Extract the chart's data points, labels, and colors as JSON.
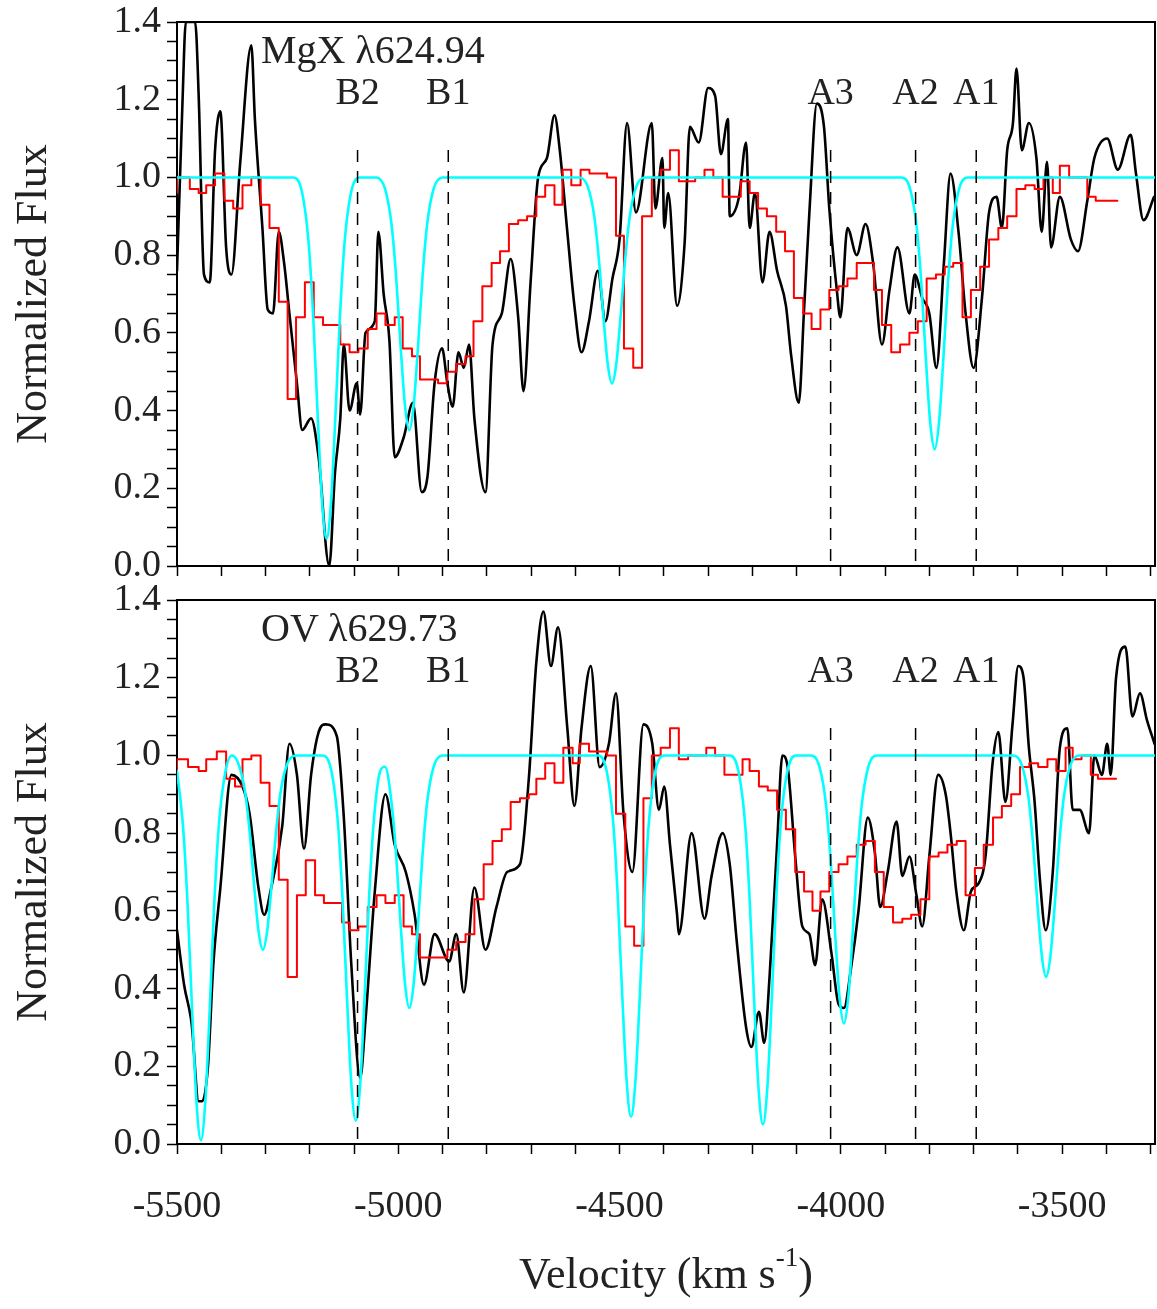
{
  "chart_data": [
    {
      "type": "line",
      "annotations": [
        "MgX λ624.94"
      ],
      "ylabel": "Normalized Flux",
      "tick_labels": "y",
      "xlim": [
        -5500,
        -3290
      ],
      "xticks": [
        -5500,
        {
          "value": -5400,
          "label": null
        },
        {
          "value": -5300,
          "label": null
        },
        {
          "value": -5200,
          "label": null
        },
        {
          "value": -5100,
          "label": null
        },
        -5000,
        {
          "value": -4900,
          "label": null
        },
        {
          "value": -4800,
          "label": null
        },
        {
          "value": -4700,
          "label": null
        },
        {
          "value": -4600,
          "label": null
        },
        -4500,
        {
          "value": -4400,
          "label": null
        },
        {
          "value": -4300,
          "label": null
        },
        {
          "value": -4200,
          "label": null
        },
        {
          "value": -4100,
          "label": null
        },
        -4000,
        {
          "value": -3900,
          "label": null
        },
        {
          "value": -3800,
          "label": null
        },
        {
          "value": -3700,
          "label": null
        },
        {
          "value": -3600,
          "label": null
        },
        -3500,
        {
          "value": -3400,
          "label": null
        },
        {
          "value": -3300,
          "label": null
        }
      ],
      "ylim": [
        0,
        1.4
      ],
      "yticks": [
        {
          "value": 0,
          "label": "0.0"
        },
        {
          "value": 0.05,
          "label": null
        },
        {
          "value": 0.1,
          "label": null
        },
        {
          "value": 0.15,
          "label": null
        },
        {
          "value": 0.2,
          "label": "0.2"
        },
        {
          "value": 0.25,
          "label": null
        },
        {
          "value": 0.3,
          "label": null
        },
        {
          "value": 0.35,
          "label": null
        },
        {
          "value": 0.4,
          "label": "0.4"
        },
        {
          "value": 0.45,
          "label": null
        },
        {
          "value": 0.5,
          "label": null
        },
        {
          "value": 0.55,
          "label": null
        },
        {
          "value": 0.6,
          "label": "0.6"
        },
        {
          "value": 0.65,
          "label": null
        },
        {
          "value": 0.7,
          "label": null
        },
        {
          "value": 0.75,
          "label": null
        },
        {
          "value": 0.8,
          "label": "0.8"
        },
        {
          "value": 0.85,
          "label": null
        },
        {
          "value": 0.9,
          "label": null
        },
        {
          "value": 0.95,
          "label": null
        },
        {
          "value": 1,
          "label": "1.0"
        },
        {
          "value": 1.05,
          "label": null
        },
        {
          "value": 1.1,
          "label": null
        },
        {
          "value": 1.15,
          "label": null
        },
        {
          "value": 1.2,
          "label": "1.2"
        },
        {
          "value": 1.25,
          "label": null
        },
        {
          "value": 1.3,
          "label": null
        },
        {
          "value": 1.35,
          "label": null
        },
        {
          "value": 1.4,
          "label": "1.4"
        }
      ],
      "ref_lines": [
        {
          "axis": "x",
          "value": -5092,
          "label": "B2",
          "color": "#000000",
          "line_style": "dashed"
        },
        {
          "axis": "x",
          "value": -4887,
          "label": "B1",
          "color": "#000000",
          "line_style": "dashed"
        },
        {
          "axis": "x",
          "value": -4023,
          "label": "A3",
          "color": "#000000",
          "line_style": "dashed"
        },
        {
          "axis": "x",
          "value": -3831,
          "label": "A2",
          "color": "#000000",
          "line_style": "dashed"
        },
        {
          "axis": "x",
          "value": -3694,
          "label": "A1",
          "color": "#000000",
          "line_style": "dashed"
        }
      ],
      "series": [
        {
          "type": "line",
          "color": "#000000",
          "x": [
            -5500,
            -5488,
            -5480,
            -5459,
            -5451,
            -5439,
            -5426,
            -5414,
            -5402,
            -5389,
            -5377,
            -5357,
            -5332,
            -5324,
            -5307,
            -5295,
            -5283,
            -5270,
            -5258,
            -5246,
            -5229,
            -5217,
            -5197,
            -5180,
            -5156,
            -5143,
            -5131,
            -5123,
            -5110,
            -5094,
            -5086,
            -5074,
            -5053,
            -5045,
            -5033,
            -5020,
            -5008,
            -4988,
            -4967,
            -4947,
            -4934,
            -4918,
            -4901,
            -4889,
            -4877,
            -4864,
            -4852,
            -4840,
            -4828,
            -4803,
            -4787,
            -4766,
            -4746,
            -4729,
            -4717,
            -4701,
            -4684,
            -4664,
            -4647,
            -4635,
            -4618,
            -4602,
            -4586,
            -4569,
            -4549,
            -4532,
            -4516,
            -4500,
            -4483,
            -4463,
            -4427,
            -4419,
            -4403,
            -4399,
            -4390,
            -4370,
            -4353,
            -4341,
            -4321,
            -4300,
            -4284,
            -4271,
            -4255,
            -4251,
            -4230,
            -4214,
            -4206,
            -4194,
            -4177,
            -4161,
            -4144,
            -4124,
            -4112,
            -4095,
            -4083,
            -4071,
            -4054,
            -4038,
            -4026,
            -4009,
            -4001,
            -3985,
            -3964,
            -3944,
            -3927,
            -3907,
            -3890,
            -3872,
            -3845,
            -3833,
            -3816,
            -3800,
            -3784,
            -3767,
            -3752,
            -3734,
            -3718,
            -3700,
            -3681,
            -3665,
            -3648,
            -3636,
            -3624,
            -3611,
            -3603,
            -3591,
            -3575,
            -3558,
            -3546,
            -3534,
            -3525,
            -3505,
            -3480,
            -3464,
            -3443,
            -3427,
            -3398,
            -3374,
            -3345,
            -3333,
            -3316,
            -3292
          ],
          "values": [
            0.76,
            1.18,
            1.4,
            1.4,
            1.21,
            0.75,
            0.73,
            1.07,
            1.17,
            0.82,
            0.75,
            1.04,
            1.34,
            1.15,
            0.87,
            0.66,
            0.65,
            0.86,
            0.78,
            0.65,
            0.47,
            0.35,
            0.38,
            0.28,
            0,
            0.24,
            0.38,
            0.57,
            0.4,
            0.47,
            0.39,
            0.6,
            0.63,
            0.86,
            0.7,
            0.58,
            0.28,
            0.33,
            0.42,
            0.19,
            0.23,
            0.47,
            0.56,
            0.47,
            0.41,
            0.55,
            0.51,
            0.57,
            0.38,
            0.19,
            0.57,
            0.65,
            0.79,
            0.64,
            0.45,
            0.73,
            1,
            1.05,
            1.16,
            1.07,
            0.86,
            0.67,
            0.55,
            0.63,
            0.76,
            0.63,
            0.74,
            0.84,
            1.14,
            0.91,
            1.14,
            0.92,
            1.05,
            0.87,
            0.96,
            0.67,
            0.83,
            1.13,
            1.09,
            1.23,
            1.21,
            1.06,
            1.15,
            0.9,
            0.95,
            1.09,
            0.87,
            0.96,
            0.73,
            0.86,
            0.76,
            0.67,
            0.54,
            0.42,
            0.66,
            0.91,
            1.19,
            1.13,
            0.92,
            0.71,
            0.64,
            0.87,
            0.8,
            0.88,
            0.78,
            0.57,
            0.71,
            0.82,
            0.65,
            0.75,
            0.69,
            0.65,
            0.51,
            0.78,
            1.01,
            0.86,
            0.65,
            0.51,
            0.69,
            0.91,
            0.95,
            0.87,
            1.07,
            1.14,
            1.28,
            1.07,
            1.14,
            1.05,
            0.86,
            1.04,
            0.82,
            0.95,
            0.84,
            0.81,
            0.94,
            1.05,
            1.1,
            1.02,
            1.11,
            1.01,
            0.89,
            0.95
          ]
        },
        {
          "type": "step",
          "color": "#ff0000",
          "x": [
            -5500,
            -5471,
            -5451,
            -5434,
            -5414,
            -5393,
            -5373,
            -5352,
            -5332,
            -5311,
            -5291,
            -5270,
            -5250,
            -5231,
            -5211,
            -5191,
            -5170,
            -5150,
            -5131,
            -5110,
            -5090,
            -5069,
            -5049,
            -5029,
            -5008,
            -4990,
            -4969,
            -4951,
            -4930,
            -4910,
            -4889,
            -4869,
            -4848,
            -4830,
            -4810,
            -4789,
            -4770,
            -4750,
            -4729,
            -4709,
            -4688,
            -4668,
            -4647,
            -4629,
            -4609,
            -4588,
            -4568,
            -4549,
            -4528,
            -4508,
            -4490,
            -4469,
            -4449,
            -4427,
            -4407,
            -4386,
            -4366,
            -4349,
            -4329,
            -4308,
            -4288,
            -4267,
            -4247,
            -4226,
            -4206,
            -4187,
            -4167,
            -4146,
            -4126,
            -4106,
            -4085,
            -4066,
            -4046,
            -4026,
            -4005,
            -3985,
            -3964,
            -3946,
            -3925,
            -3907,
            -3886,
            -3866,
            -3845,
            -3826,
            -3806,
            -3785,
            -3765,
            -3746,
            -3725,
            -3706,
            -3685,
            -3665,
            -3644,
            -3624,
            -3603,
            -3583,
            -3562,
            -3542,
            -3521,
            -3505,
            -3484,
            -3464,
            -3443,
            -3424,
            -3405,
            -3375
          ],
          "values": [
            0.96,
            1,
            0.97,
            0.96,
            0.98,
            1.01,
            0.94,
            0.92,
            0.98,
            1,
            0.93,
            0.87,
            0.68,
            0.43,
            0.64,
            0.73,
            0.64,
            0.62,
            0.62,
            0.57,
            0.55,
            0.56,
            0.61,
            0.65,
            0.62,
            0.64,
            0.56,
            0.54,
            0.48,
            0.48,
            0.47,
            0.5,
            0.52,
            0.54,
            0.63,
            0.72,
            0.78,
            0.81,
            0.88,
            0.89,
            0.9,
            0.95,
            0.98,
            0.93,
            1.02,
            0.98,
            1.02,
            1.01,
            1.01,
            1,
            0.85,
            0.56,
            0.51,
            0.9,
            1,
            1.02,
            1.07,
            0.99,
            0.99,
            1,
            1.02,
            1,
            0.95,
            0.95,
            0.99,
            0.96,
            0.92,
            0.9,
            0.86,
            0.81,
            0.69,
            0.65,
            0.61,
            0.66,
            0.71,
            0.72,
            0.74,
            0.78,
            0.78,
            0.71,
            0.62,
            0.55,
            0.57,
            0.6,
            0.63,
            0.74,
            0.75,
            0.77,
            0.78,
            0.64,
            0.71,
            0.77,
            0.84,
            0.87,
            0.9,
            0.97,
            0.98,
            0.97,
            1,
            0.96,
            1.03,
            1,
            1,
            0.95,
            0.94,
            0.94
          ]
        },
        {
          "type": "line",
          "color": "#00ffff",
          "x": [
            -5500,
            -5237,
            -5217,
            -5202,
            -5192,
            -5182,
            -5172,
            -5162,
            -5152,
            -5142,
            -5132,
            -5122,
            -5107,
            -5087,
            -5050,
            -5030,
            -5015,
            -5005,
            -4995,
            -4985,
            -4975,
            -4965,
            -4955,
            -4945,
            -4935,
            -4920,
            -4900,
            -4592,
            -4572,
            -4557,
            -4547,
            -4537,
            -4527,
            -4517,
            -4507,
            -4497,
            -4487,
            -4477,
            -4462,
            -4442,
            -3863,
            -3843,
            -3828,
            -3818,
            -3808,
            -3798,
            -3788,
            -3778,
            -3768,
            -3758,
            -3748,
            -3733,
            -3713,
            -3290
          ],
          "values": [
            1,
            1,
            0.959,
            0.823,
            0.637,
            0.386,
            0.163,
            0.07,
            0.163,
            0.386,
            0.637,
            0.823,
            0.959,
            1,
            1,
            0.971,
            0.877,
            0.747,
            0.571,
            0.415,
            0.35,
            0.415,
            0.571,
            0.747,
            0.877,
            0.971,
            1,
            1,
            0.977,
            0.899,
            0.793,
            0.65,
            0.523,
            0.47,
            0.523,
            0.65,
            0.793,
            0.899,
            0.977,
            1,
            1,
            0.969,
            0.867,
            0.727,
            0.538,
            0.37,
            0.3,
            0.37,
            0.538,
            0.727,
            0.867,
            0.969,
            1,
            1
          ]
        }
      ]
    },
    {
      "type": "line",
      "annotations": [
        "OV λ629.73"
      ],
      "ylabel": "Normalized Flux",
      "xlabel": "Velocity (km s$^{-1}$)",
      "xlim": [
        -5500,
        -3290
      ],
      "xticks": [
        -5500,
        {
          "value": -5400,
          "label": null
        },
        {
          "value": -5300,
          "label": null
        },
        {
          "value": -5200,
          "label": null
        },
        {
          "value": -5100,
          "label": null
        },
        -5000,
        {
          "value": -4900,
          "label": null
        },
        {
          "value": -4800,
          "label": null
        },
        {
          "value": -4700,
          "label": null
        },
        {
          "value": -4600,
          "label": null
        },
        -4500,
        {
          "value": -4400,
          "label": null
        },
        {
          "value": -4300,
          "label": null
        },
        {
          "value": -4200,
          "label": null
        },
        {
          "value": -4100,
          "label": null
        },
        -4000,
        {
          "value": -3900,
          "label": null
        },
        {
          "value": -3800,
          "label": null
        },
        {
          "value": -3700,
          "label": null
        },
        {
          "value": -3600,
          "label": null
        },
        -3500,
        {
          "value": -3400,
          "label": null
        },
        {
          "value": -3300,
          "label": null
        }
      ],
      "ylim": [
        0,
        1.4
      ],
      "yticks": [
        {
          "value": 0,
          "label": "0.0"
        },
        {
          "value": 0.05,
          "label": null
        },
        {
          "value": 0.1,
          "label": null
        },
        {
          "value": 0.15,
          "label": null
        },
        {
          "value": 0.2,
          "label": "0.2"
        },
        {
          "value": 0.25,
          "label": null
        },
        {
          "value": 0.3,
          "label": null
        },
        {
          "value": 0.35,
          "label": null
        },
        {
          "value": 0.4,
          "label": "0.4"
        },
        {
          "value": 0.45,
          "label": null
        },
        {
          "value": 0.5,
          "label": null
        },
        {
          "value": 0.55,
          "label": null
        },
        {
          "value": 0.6,
          "label": "0.6"
        },
        {
          "value": 0.65,
          "label": null
        },
        {
          "value": 0.7,
          "label": null
        },
        {
          "value": 0.75,
          "label": null
        },
        {
          "value": 0.8,
          "label": "0.8"
        },
        {
          "value": 0.85,
          "label": null
        },
        {
          "value": 0.9,
          "label": null
        },
        {
          "value": 0.95,
          "label": null
        },
        {
          "value": 1,
          "label": "1.0"
        },
        {
          "value": 1.05,
          "label": null
        },
        {
          "value": 1.1,
          "label": null
        },
        {
          "value": 1.15,
          "label": null
        },
        {
          "value": 1.2,
          "label": "1.2"
        },
        {
          "value": 1.25,
          "label": null
        },
        {
          "value": 1.3,
          "label": null
        },
        {
          "value": 1.35,
          "label": null
        },
        {
          "value": 1.4,
          "label": "1.4"
        }
      ],
      "ref_lines": [
        {
          "axis": "x",
          "value": -5092,
          "label": "B2",
          "color": "#000000",
          "line_style": "dashed"
        },
        {
          "axis": "x",
          "value": -4887,
          "label": "B1",
          "color": "#000000",
          "line_style": "dashed"
        },
        {
          "axis": "x",
          "value": -4023,
          "label": "A3",
          "color": "#000000",
          "line_style": "dashed"
        },
        {
          "axis": "x",
          "value": -3831,
          "label": "A2",
          "color": "#000000",
          "line_style": "dashed"
        },
        {
          "axis": "x",
          "value": -3694,
          "label": "A1",
          "color": "#000000",
          "line_style": "dashed"
        }
      ],
      "series": [
        {
          "type": "line",
          "color": "#000000",
          "x": [
            -5500,
            -5484,
            -5467,
            -5451,
            -5443,
            -5430,
            -5418,
            -5402,
            -5377,
            -5352,
            -5336,
            -5316,
            -5303,
            -5287,
            -5262,
            -5246,
            -5229,
            -5213,
            -5197,
            -5180,
            -5164,
            -5139,
            -5123,
            -5106,
            -5086,
            -5074,
            -5053,
            -5029,
            -5008,
            -4983,
            -4963,
            -4942,
            -4918,
            -4885,
            -4869,
            -4852,
            -4828,
            -4803,
            -4778,
            -4754,
            -4725,
            -4705,
            -4688,
            -4672,
            -4655,
            -4639,
            -4618,
            -4602,
            -4586,
            -4565,
            -4545,
            -4524,
            -4508,
            -4491,
            -4471,
            -4446,
            -4426,
            -4411,
            -4399,
            -4386,
            -4370,
            -4366,
            -4337,
            -4308,
            -4292,
            -4267,
            -4251,
            -4235,
            -4214,
            -4202,
            -4185,
            -4173,
            -4161,
            -4144,
            -4132,
            -4120,
            -4103,
            -4087,
            -4071,
            -4058,
            -4042,
            -4021,
            -4005,
            -3993,
            -3976,
            -3960,
            -3939,
            -3923,
            -3911,
            -3894,
            -3874,
            -3861,
            -3845,
            -3829,
            -3816,
            -3800,
            -3780,
            -3763,
            -3751,
            -3739,
            -3722,
            -3706,
            -3689,
            -3673,
            -3657,
            -3644,
            -3628,
            -3612,
            -3599,
            -3587,
            -3575,
            -3562,
            -3550,
            -3537,
            -3521,
            -3505,
            -3488,
            -3476,
            -3460,
            -3439,
            -3427,
            -3410,
            -3398,
            -3390,
            -3378,
            -3357,
            -3341,
            -3324,
            -3308,
            -3291
          ],
          "values": [
            0.55,
            0.41,
            0.31,
            0.11,
            0.11,
            0.2,
            0.46,
            0.66,
            0.95,
            0.92,
            0.85,
            0.66,
            0.59,
            0.66,
            0.82,
            1.03,
            0.95,
            0.76,
            0.95,
            1.06,
            1.08,
            1.05,
            0.84,
            0.46,
            0.17,
            0.32,
            0.65,
            0.9,
            0.77,
            0.7,
            0.59,
            0.41,
            0.54,
            0.47,
            0.54,
            0.39,
            0.66,
            0.5,
            0.61,
            0.7,
            0.72,
            0.94,
            1.24,
            1.37,
            1.23,
            1.33,
            1.07,
            0.87,
            1.07,
            1.23,
            0.97,
            1.03,
            1.16,
            0.85,
            0.7,
            1.08,
            1.03,
            0.86,
            0.92,
            0.77,
            0.59,
            0.54,
            0.8,
            0.58,
            0.69,
            0.8,
            0.72,
            0.52,
            0.3,
            0.25,
            0.34,
            0.26,
            0.43,
            0.77,
            1,
            0.97,
            0.74,
            0.56,
            0.54,
            0.46,
            0.63,
            0.49,
            0.36,
            0.35,
            0.46,
            0.6,
            0.84,
            0.75,
            0.61,
            0.7,
            0.83,
            0.69,
            0.74,
            0.64,
            0.56,
            0.74,
            0.95,
            0.9,
            0.79,
            0.65,
            0.55,
            0.65,
            0.67,
            0.74,
            0.98,
            1.06,
            0.88,
            1.08,
            1.23,
            1.2,
            1.02,
            0.88,
            0.68,
            0.55,
            0.7,
            1.02,
            1.07,
            0.86,
            0.86,
            0.8,
            1,
            0.95,
            1.03,
            0.95,
            1.2,
            1.28,
            1.1,
            1.16,
            1.09,
            1.03
          ]
        },
        {
          "type": "step",
          "color": "#ff0000",
          "x": [
            -5500,
            -5475,
            -5451,
            -5434,
            -5410,
            -5389,
            -5369,
            -5352,
            -5332,
            -5311,
            -5291,
            -5270,
            -5250,
            -5229,
            -5209,
            -5188,
            -5168,
            -5147,
            -5127,
            -5110,
            -5090,
            -5069,
            -5049,
            -5029,
            -5008,
            -4988,
            -4969,
            -4951,
            -4930,
            -4910,
            -4889,
            -4869,
            -4848,
            -4828,
            -4807,
            -4787,
            -4766,
            -4746,
            -4725,
            -4705,
            -4688,
            -4668,
            -4647,
            -4627,
            -4606,
            -4590,
            -4569,
            -4549,
            -4528,
            -4508,
            -4487,
            -4467,
            -4446,
            -4427,
            -4407,
            -4386,
            -4366,
            -4345,
            -4325,
            -4304,
            -4284,
            -4263,
            -4247,
            -4222,
            -4206,
            -4185,
            -4165,
            -4144,
            -4124,
            -4103,
            -4083,
            -4064,
            -4046,
            -4026,
            -4005,
            -3985,
            -3964,
            -3944,
            -3923,
            -3903,
            -3882,
            -3861,
            -3841,
            -3820,
            -3800,
            -3779,
            -3759,
            -3738,
            -3718,
            -3697,
            -3677,
            -3656,
            -3636,
            -3615,
            -3595,
            -3574,
            -3554,
            -3533,
            -3513,
            -3492,
            -3476,
            -3456,
            -3435,
            -3419,
            -3398,
            -3378
          ],
          "values": [
            0.96,
            0.99,
            0.97,
            0.96,
            0.99,
            1.01,
            0.94,
            0.92,
            0.99,
            1,
            0.93,
            0.87,
            0.68,
            0.43,
            0.64,
            0.73,
            0.64,
            0.62,
            0.62,
            0.57,
            0.55,
            0.56,
            0.61,
            0.64,
            0.62,
            0.64,
            0.56,
            0.54,
            0.48,
            0.48,
            0.48,
            0.5,
            0.52,
            0.54,
            0.63,
            0.72,
            0.78,
            0.81,
            0.88,
            0.89,
            0.9,
            0.94,
            0.98,
            0.93,
            1.02,
            0.98,
            1.03,
            1.01,
            1.01,
            1,
            0.85,
            0.56,
            0.51,
            0.89,
            1,
            1.02,
            1.07,
            0.99,
            1,
            1,
            1.02,
            1,
            0.95,
            0.95,
            0.99,
            0.96,
            0.92,
            0.91,
            0.86,
            0.81,
            0.7,
            0.65,
            0.6,
            0.65,
            0.7,
            0.72,
            0.74,
            0.77,
            0.78,
            0.7,
            0.61,
            0.57,
            0.58,
            0.59,
            0.63,
            0.74,
            0.75,
            0.77,
            0.78,
            0.64,
            0.71,
            0.77,
            0.84,
            0.87,
            0.9,
            0.97,
            0.98,
            0.97,
            0.99,
            0.96,
            1.02,
            0.99,
            1,
            0.95,
            0.94,
            0.94
          ]
        },
        {
          "type": "line",
          "color": "#00ffff",
          "x": [
            -5500,
            -5486,
            -5476,
            -5466,
            -5456,
            -5446,
            -5436,
            -5426,
            -5416,
            -5406,
            -5391,
            -5376,
            -5361,
            -5346,
            -5336,
            -5326,
            -5316,
            -5306,
            -5296,
            -5286,
            -5276,
            -5266,
            -5251,
            -5231,
            -5171,
            -5151,
            -5136,
            -5126,
            -5116,
            -5106,
            -5096,
            -5086,
            -5076,
            -5066,
            -5056,
            -5041,
            -5030,
            -5015,
            -5005,
            -4995,
            -4985,
            -4975,
            -4965,
            -4955,
            -4945,
            -4935,
            -4920,
            -4900,
            -4549,
            -4529,
            -4514,
            -4504,
            -4494,
            -4484,
            -4474,
            -4464,
            -4454,
            -4444,
            -4434,
            -4419,
            -4399,
            -4251,
            -4231,
            -4216,
            -4206,
            -4196,
            -4186,
            -4176,
            -4166,
            -4156,
            -4146,
            -4136,
            -4121,
            -4101,
            -4068,
            -4048,
            -4033,
            -4023,
            -4013,
            -4003,
            -3993,
            -3983,
            -3973,
            -3963,
            -3953,
            -3938,
            -3918,
            -3611,
            -3591,
            -3576,
            -3566,
            -3556,
            -3546,
            -3536,
            -3526,
            -3516,
            -3506,
            -3496,
            -3481,
            -3461,
            -3290
          ],
          "values": [
            0.96,
            0.812,
            0.614,
            0.347,
            0.109,
            0.01,
            0.109,
            0.347,
            0.614,
            0.812,
            0.956,
            1,
            0.978,
            0.905,
            0.805,
            0.67,
            0.55,
            0.5,
            0.55,
            0.67,
            0.805,
            0.905,
            0.978,
            1,
            1,
            0.959,
            0.821,
            0.633,
            0.38,
            0.154,
            0.06,
            0.154,
            0.38,
            0.633,
            0.821,
            0.959,
            0.971,
            0.877,
            0.747,
            0.571,
            0.415,
            0.35,
            0.415,
            0.571,
            0.747,
            0.877,
            0.971,
            1,
            1,
            0.959,
            0.823,
            0.637,
            0.386,
            0.163,
            0.07,
            0.163,
            0.386,
            0.637,
            0.823,
            0.959,
            1,
            1,
            0.958,
            0.82,
            0.63,
            0.373,
            0.145,
            0.05,
            0.145,
            0.373,
            0.63,
            0.82,
            0.958,
            1,
            1,
            0.97,
            0.869,
            0.731,
            0.545,
            0.379,
            0.31,
            0.379,
            0.545,
            0.731,
            0.869,
            0.97,
            1,
            1,
            0.975,
            0.892,
            0.778,
            0.624,
            0.487,
            0.43,
            0.487,
            0.624,
            0.778,
            0.892,
            0.975,
            1,
            1
          ]
        }
      ]
    }
  ]
}
